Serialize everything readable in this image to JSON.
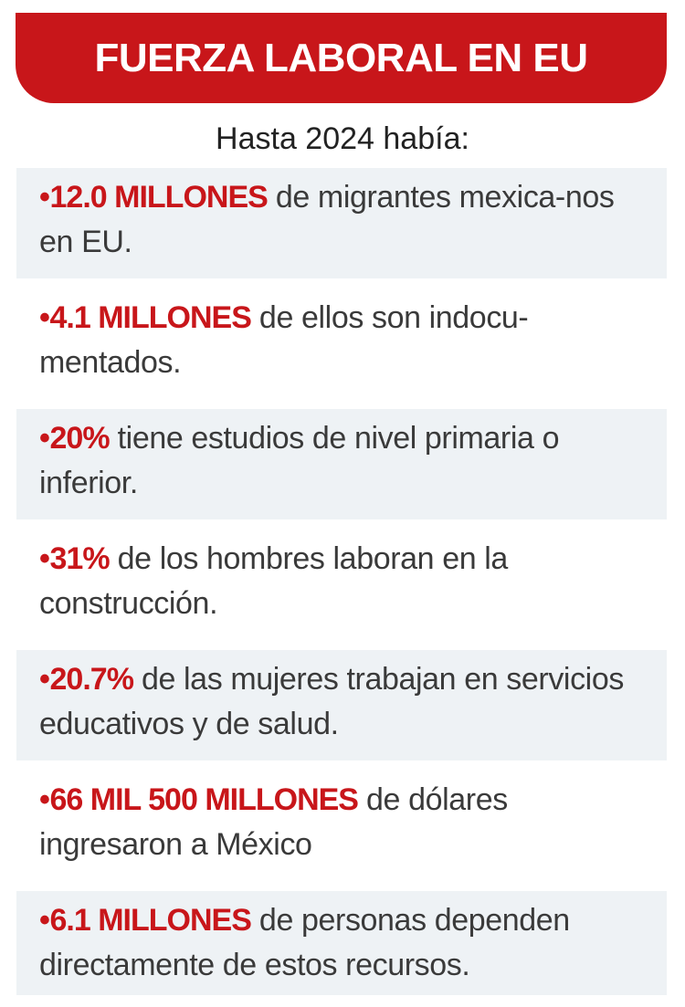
{
  "header": {
    "title": "FUERZA LABORAL EN EU"
  },
  "subtitle": "Hasta 2024 había:",
  "bullet": "•",
  "items": [
    {
      "highlight": "12.0 MILLONES",
      "text": " de migrantes mexica-nos en EU."
    },
    {
      "highlight": "4.1 MILLONES",
      "text": " de ellos son indocu-mentados."
    },
    {
      "highlight": "20%",
      "text": " tiene estudios de nivel primaria o inferior."
    },
    {
      "highlight": "31%",
      "text": " de los hombres laboran en la construcción."
    },
    {
      "highlight": "20.7%",
      "text": " de las mujeres trabajan en servicios educativos y de salud."
    },
    {
      "highlight": "66 MIL 500 MILLONES",
      "text": " de dólares ingresaron a México"
    },
    {
      "highlight": "6.1 MILLONES",
      "text": " de personas dependen directamente de estos recursos."
    }
  ],
  "colors": {
    "accent": "#c8161a",
    "shade": "#eef2f5",
    "text": "#3a3a3a"
  }
}
